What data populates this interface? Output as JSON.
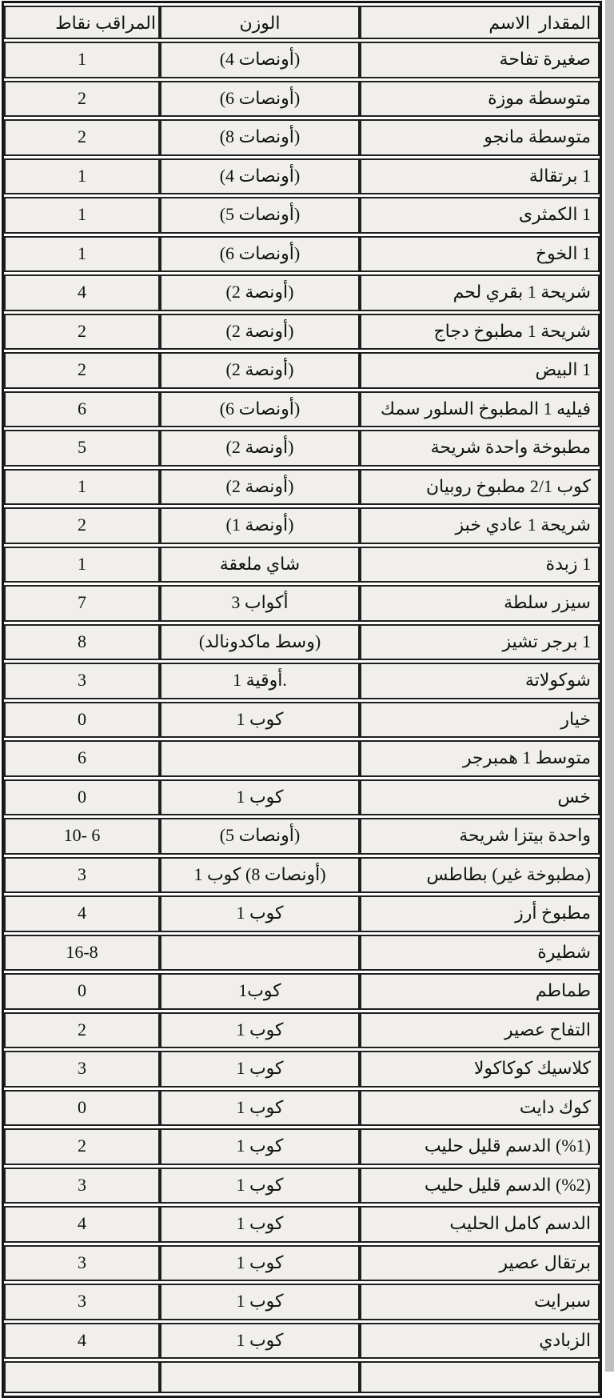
{
  "colors": {
    "page_bg": "#ffffff",
    "cell_bg": "#f0efec",
    "border": "#1f1f1f",
    "text": "#121212",
    "scan_edge": "#aaaaaa"
  },
  "table": {
    "headers": {
      "points": "نقاط‎ المراقب",
      "weight": "الوزن",
      "name": "الاسم‎  المقدار"
    },
    "rows": [
      {
        "name": "تفاحة‎ صغيرة",
        "weight": "(4 أونصات)",
        "points": "1"
      },
      {
        "name": "موزة‎ متوسطة",
        "weight": "(6 أونصات)",
        "points": "2"
      },
      {
        "name": "مانجو‎ متوسطة",
        "weight": "(8 أونصات)",
        "points": "2"
      },
      {
        "name": "برتقالة‎ 1",
        "weight": "(4 أونصات)",
        "points": "1"
      },
      {
        "name": "الكمثرى‎ 1",
        "weight": "(5 أونصات)",
        "points": "1"
      },
      {
        "name": "الخوخ‎ 1",
        "weight": "(6 أونصات)",
        "points": "1"
      },
      {
        "name": "لحم‎ بقري‎ 1 شريحة",
        "weight": "(2 أونصة)",
        "points": "4"
      },
      {
        "name": "دجاج‎ مطبوخ‎ 1 شريحة",
        "weight": "(2 أونصة)",
        "points": "2"
      },
      {
        "name": "البيض‎ 1",
        "weight": "(2 أونصة)",
        "points": "2"
      },
      {
        "name": "سمك‎ السلور‎ المطبوخ‎ 1 فيليه",
        "weight": "(6 أونصات)",
        "points": "6"
      },
      {
        "name": "شريحة‎ واحدة‎ مطبوخة",
        "weight": "(2 أونصة)",
        "points": "5"
      },
      {
        "name": "روبيان‎ مطبوخ‎ 2/1 كوب",
        "weight": "(2 أونصة)",
        "points": "1"
      },
      {
        "name": "خبز‎ عادي‎ 1 شريحة",
        "weight": "(1 أونصة)",
        "points": "2"
      },
      {
        "name": "زبدة‎ 1",
        "weight": "ملعقة‎ شاي",
        "points": "1"
      },
      {
        "name": "سلطة‎ سيزر",
        "weight": "3 أكواب",
        "points": "7"
      },
      {
        "name": "تشيز‎ برجر‎ 1",
        "weight": "(ماكدونالد‎ وسط)",
        "points": "8"
      },
      {
        "name": "شوكولاتة",
        "weight": "1 أوقية.",
        "points": "3"
      },
      {
        "name": "خيار",
        "weight": "1 كوب",
        "points": "0"
      },
      {
        "name": "همبرجر‎ 1 متوسط",
        "weight": "",
        "points": "6"
      },
      {
        "name": "خس",
        "weight": "1 كوب",
        "points": "0"
      },
      {
        "name": "شريحة‎ بيتزا‎ واحدة",
        "weight": "(5 أونصات)",
        "points": "10- 6"
      },
      {
        "name": "بطاطس‎ (غير‎ مطبوخة)",
        "weight": "1 كوب‎ (8 أونصات)",
        "points": "3"
      },
      {
        "name": "أرز‎ مطبوخ",
        "weight": "1 كوب",
        "points": "4"
      },
      {
        "name": "شطيرة",
        "weight": "",
        "points": "16-8"
      },
      {
        "name": "طماطم",
        "weight": "1كوب",
        "points": "0"
      },
      {
        "name": "عصير‎ التفاح",
        "weight": "1 كوب",
        "points": "2"
      },
      {
        "name": "كوكاكولا‎ كلاسيك",
        "weight": "1 كوب",
        "points": "3"
      },
      {
        "name": "دايت‎ كوك",
        "weight": "1 كوب",
        "points": "0"
      },
      {
        "name": "حليب‎ قليل‎ الدسم‎ (%1)",
        "weight": "1 كوب",
        "points": "2"
      },
      {
        "name": "حليب‎ قليل‎ الدسم‎ (%2)",
        "weight": "1 كوب",
        "points": "3"
      },
      {
        "name": "الحليب‎ كامل‎ الدسم",
        "weight": "1 كوب",
        "points": "4"
      },
      {
        "name": "عصير‎ برتقال",
        "weight": "1 كوب",
        "points": "3"
      },
      {
        "name": "سبرايت",
        "weight": "1 كوب",
        "points": "3"
      },
      {
        "name": "الزبادي",
        "weight": "1 كوب",
        "points": "4"
      }
    ]
  }
}
